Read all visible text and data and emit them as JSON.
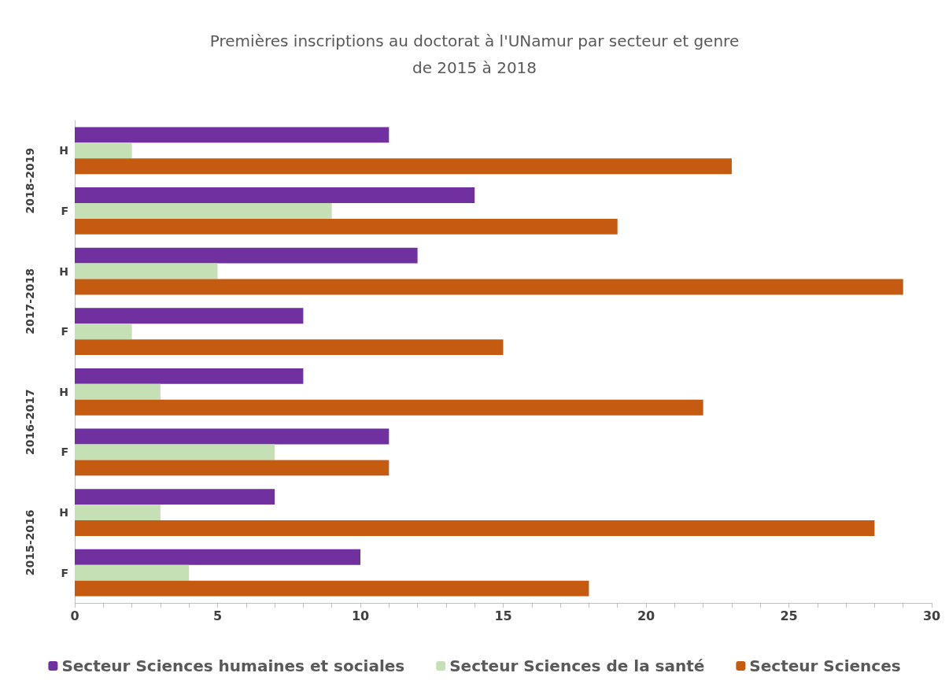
{
  "chart_data": {
    "type": "bar",
    "orientation": "horizontal",
    "title": "Premières inscriptions au doctorat à l'UNamur par secteur et genre\nde 2015 à 2018",
    "categories": [
      "H",
      "F",
      "H",
      "F",
      "H",
      "F",
      "H",
      "F"
    ],
    "annotations": [
      "2018-2019",
      "2017-2018",
      "2016-2017",
      "2015-2016"
    ],
    "series": [
      {
        "name": "Secteur Sciences humaines et sociales",
        "color": "#7030a0",
        "values": [
          11,
          14,
          12,
          8,
          8,
          11,
          7,
          10
        ]
      },
      {
        "name": "Secteur Sciences de la santé",
        "color": "#c5e0b4",
        "values": [
          2,
          9,
          5,
          2,
          3,
          7,
          3,
          4
        ]
      },
      {
        "name": "Secteur Sciences",
        "color": "#c55a11",
        "values": [
          23,
          19,
          29,
          15,
          22,
          11,
          28,
          18
        ]
      }
    ],
    "xlim": [
      0,
      30
    ],
    "xticks": [
      0,
      {
        "value": 1,
        "label": null
      },
      {
        "value": 2,
        "label": null
      },
      {
        "value": 3,
        "label": null
      },
      {
        "value": 4,
        "label": null
      },
      5,
      {
        "value": 6,
        "label": null
      },
      {
        "value": 7,
        "label": null
      },
      {
        "value": 8,
        "label": null
      },
      {
        "value": 9,
        "label": null
      },
      10,
      {
        "value": 11,
        "label": null
      },
      {
        "value": 12,
        "label": null
      },
      {
        "value": 13,
        "label": null
      },
      {
        "value": 14,
        "label": null
      },
      15,
      {
        "value": 16,
        "label": null
      },
      {
        "value": 17,
        "label": null
      },
      {
        "value": 18,
        "label": null
      },
      {
        "value": 19,
        "label": null
      },
      20,
      {
        "value": 21,
        "label": null
      },
      {
        "value": 22,
        "label": null
      },
      {
        "value": 23,
        "label": null
      },
      {
        "value": 24,
        "label": null
      },
      25,
      {
        "value": 26,
        "label": null
      },
      {
        "value": 27,
        "label": null
      },
      {
        "value": 28,
        "label": null
      },
      {
        "value": 29,
        "label": null
      },
      30
    ],
    "grid": false,
    "legend": "bottom"
  }
}
